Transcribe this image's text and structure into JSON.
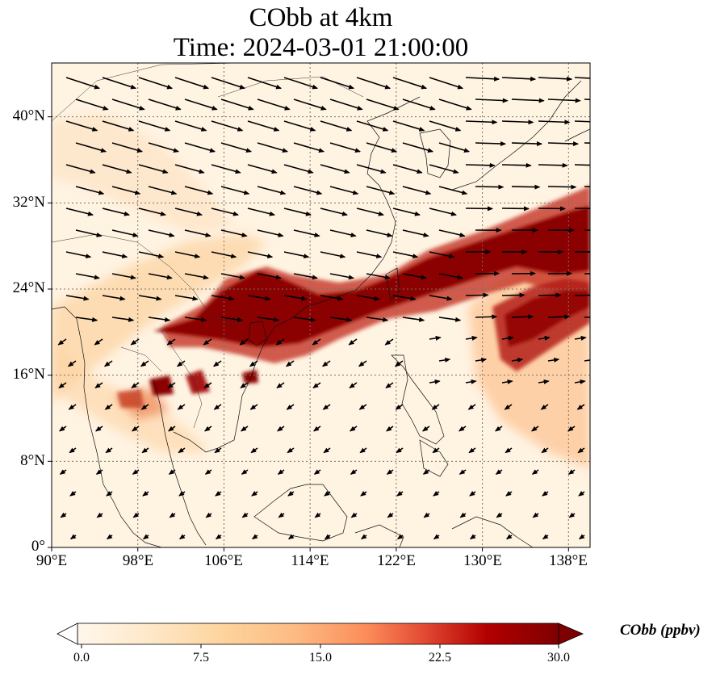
{
  "title": {
    "line1": "CObb at 4km",
    "line2": "Time: 2024-03-01 21:00:00"
  },
  "map": {
    "projection": "PlateCarree",
    "lon_range": [
      90,
      140
    ],
    "lat_range": [
      0,
      45
    ],
    "gridlines": "dotted",
    "lon_ticks": [
      "90°E",
      "98°E",
      "106°E",
      "114°E",
      "122°E",
      "130°E",
      "138°E"
    ],
    "lat_ticks": [
      "0°",
      "8°N",
      "16°N",
      "24°N",
      "32°N",
      "40°N"
    ],
    "lon_tick_values": [
      90,
      98,
      106,
      114,
      122,
      130,
      138
    ],
    "lat_tick_values": [
      0,
      8,
      16,
      24,
      32,
      40
    ],
    "plume_description_values": {
      "main_band_ppbv": 30,
      "background_ppbv": 2
    }
  },
  "colorbar": {
    "label": "CObb (ppbv)",
    "min": 0.0,
    "max": 30.0,
    "ticks": [
      "0.0",
      "7.5",
      "15.0",
      "22.5",
      "30.0"
    ],
    "colormap": [
      "#fff7ec",
      "#fee8c8",
      "#fdd49e",
      "#fdbb84",
      "#fc8d59",
      "#ef6548",
      "#d7301f",
      "#b30000",
      "#7f0000"
    ],
    "extend": "both"
  }
}
